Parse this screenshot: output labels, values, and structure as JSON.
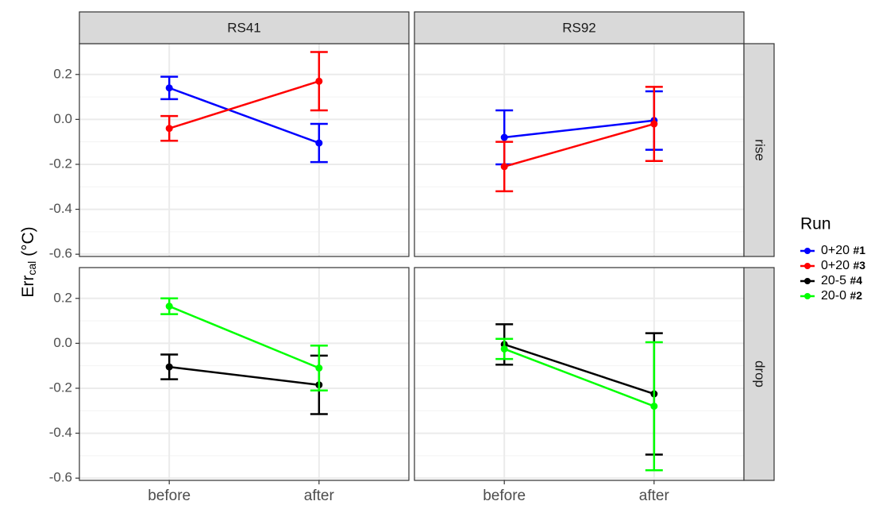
{
  "chart_data": {
    "type": "line",
    "columns": [
      "RS41",
      "RS92"
    ],
    "rows": [
      "rise",
      "drop"
    ],
    "categories": [
      "before",
      "after"
    ],
    "y_label": {
      "main": "Err",
      "sub": "cal",
      "unit": "(°C)"
    },
    "ylim": [
      -0.61,
      0.337
    ],
    "yticks": [
      -0.6,
      -0.4,
      -0.2,
      {
        "value": 0,
        "label": "0.0"
      },
      0.2
    ],
    "grid": true,
    "legend_title": "Run",
    "legend_position": "right",
    "series": [
      {
        "name": "0+20 #1",
        "color": "#0000ff",
        "row": 0,
        "values": [
          [
            0.14,
            -0.105
          ],
          [
            -0.08,
            -0.005
          ]
        ],
        "errors": [
          [
            0.05,
            0.085
          ],
          [
            0.12,
            0.13
          ]
        ]
      },
      {
        "name": "0+20 #3",
        "color": "#ff0000",
        "row": 0,
        "values": [
          [
            -0.04,
            0.17
          ],
          [
            -0.21,
            -0.02
          ]
        ],
        "errors": [
          [
            0.055,
            0.13
          ],
          [
            0.11,
            0.165
          ]
        ]
      },
      {
        "name": "20-5 #4",
        "color": "#000000",
        "row": 1,
        "values": [
          [
            -0.105,
            -0.185
          ],
          [
            -0.005,
            -0.225
          ]
        ],
        "errors": [
          [
            0.055,
            0.13
          ],
          [
            0.09,
            0.27
          ]
        ]
      },
      {
        "name": "20-0 #2",
        "color": "#00ff00",
        "row": 1,
        "values": [
          [
            0.165,
            -0.11
          ],
          [
            -0.025,
            -0.28
          ]
        ],
        "errors": [
          [
            0.035,
            0.1
          ],
          [
            0.045,
            0.285
          ]
        ]
      }
    ]
  }
}
